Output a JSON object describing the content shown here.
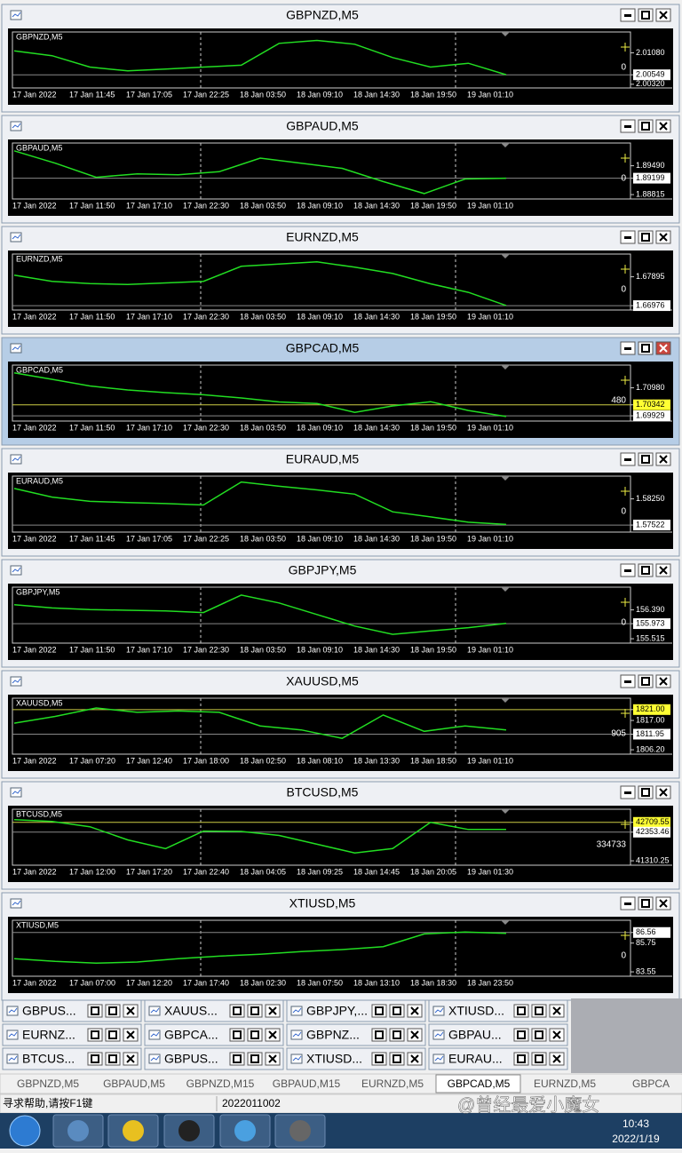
{
  "windows": [
    {
      "title": "GBPNZD,M5",
      "symbol": "GBPNZD,M5",
      "ylim": [
        2.00274,
        2.01541
      ],
      "values": [
        2.01126,
        2.01011,
        2.00735,
        2.00643,
        2.00689,
        2.00735,
        2.00781,
        2.0131,
        2.01379,
        2.01287,
        2.00965,
        2.00735,
        2.00827,
        2.00551
      ],
      "price_labels": [
        {
          "value": 2.0108,
          "label": "2.01080",
          "style": "plain"
        },
        {
          "value": 2.00549,
          "label": "2.00549",
          "style": "box"
        },
        {
          "value": 2.0032,
          "label": "2.00320",
          "style": "plain"
        }
      ],
      "indicator": 0,
      "x_labels": [
        "17 Jan 2022",
        "17 Jan 11:45",
        "17 Jan 17:05",
        "17 Jan 22:25",
        "18 Jan 03:50",
        "18 Jan 09:10",
        "18 Jan 14:30",
        "18 Jan 19:50",
        "19 Jan 01:10"
      ]
    },
    {
      "title": "GBPAUD,M5",
      "symbol": "GBPAUD,M5",
      "ylim": [
        1.88754,
        1.89981
      ],
      "values": [
        1.8984,
        1.8955,
        1.8922,
        1.893,
        1.8928,
        1.8935,
        1.8967,
        1.8955,
        1.8943,
        1.8912,
        1.8884,
        1.8918,
        1.892
      ],
      "price_labels": [
        {
          "value": 1.8949,
          "label": "1.89490",
          "style": "plain"
        },
        {
          "value": 1.89199,
          "label": "1.89199",
          "style": "box"
        },
        {
          "value": 1.88815,
          "label": "1.88815",
          "style": "plain"
        }
      ],
      "indicator": 0,
      "x_labels": [
        "17 Jan 2022",
        "17 Jan 11:50",
        "17 Jan 17:10",
        "17 Jan 22:30",
        "18 Jan 03:50",
        "18 Jan 09:10",
        "18 Jan 14:30",
        "18 Jan 19:50",
        "19 Jan 01:10"
      ]
    },
    {
      "title": "EURNZD,M5",
      "symbol": "EURNZD,M5",
      "ylim": [
        1.66893,
        1.68563
      ],
      "values": [
        1.6795,
        1.6775,
        1.6768,
        1.6765,
        1.677,
        1.6775,
        1.6823,
        1.683,
        1.6837,
        1.682,
        1.68,
        1.6767,
        1.674,
        1.6698
      ],
      "price_labels": [
        {
          "value": 1.67895,
          "label": "1.67895",
          "style": "plain"
        },
        {
          "value": 1.66976,
          "label": "1.66976",
          "style": "box"
        }
      ],
      "indicator": 0,
      "x_labels": [
        "17 Jan 2022",
        "17 Jan 11:50",
        "17 Jan 17:10",
        "17 Jan 22:30",
        "18 Jan 03:50",
        "18 Jan 09:10",
        "18 Jan 14:30",
        "18 Jan 19:50",
        "19 Jan 01:10"
      ]
    },
    {
      "title": "GBPCAD,M5",
      "symbol": "GBPCAD,M5",
      "active": true,
      "ylim": [
        1.69798,
        1.71768
      ],
      "values": [
        1.7154,
        1.713,
        1.7105,
        1.709,
        1.708,
        1.7072,
        1.706,
        1.7045,
        1.7039,
        1.7006,
        1.703,
        1.7046,
        1.7013,
        1.699
      ],
      "price_labels": [
        {
          "value": 1.7098,
          "label": "1.70980",
          "style": "plain"
        },
        {
          "value": 1.70342,
          "label": "1.70342",
          "style": "yellow"
        },
        {
          "value": 1.69929,
          "label": "1.69929",
          "style": "box"
        }
      ],
      "indicator": 480,
      "x_labels": [
        "17 Jan 2022",
        "17 Jan 11:50",
        "17 Jan 17:10",
        "17 Jan 22:30",
        "18 Jan 03:50",
        "18 Jan 09:10",
        "18 Jan 14:30",
        "18 Jan 19:50",
        "19 Jan 01:10"
      ]
    },
    {
      "title": "EURAUD,M5",
      "symbol": "EURAUD,M5",
      "ylim": [
        1.57376,
        1.58833
      ],
      "values": [
        1.5854,
        1.583,
        1.5818,
        1.5815,
        1.5812,
        1.5808,
        1.5872,
        1.586,
        1.585,
        1.5838,
        1.5789,
        1.5775,
        1.576,
        1.5754
      ],
      "price_labels": [
        {
          "value": 1.5825,
          "label": "1.58250",
          "style": "plain"
        },
        {
          "value": 1.57522,
          "label": "1.57522",
          "style": "box"
        }
      ],
      "indicator": 0,
      "x_labels": [
        "17 Jan 2022",
        "17 Jan 11:45",
        "17 Jan 17:05",
        "17 Jan 22:25",
        "18 Jan 03:50",
        "18 Jan 09:10",
        "18 Jan 14:30",
        "18 Jan 19:50",
        "19 Jan 01:10"
      ]
    },
    {
      "title": "GBPJPY,M5",
      "symbol": "GBPJPY,M5",
      "ylim": [
        155.436,
        157.026
      ],
      "values": [
        156.55,
        156.45,
        156.4,
        156.38,
        156.36,
        156.31,
        156.84,
        156.6,
        156.25,
        155.9,
        155.65,
        155.75,
        155.85,
        155.98
      ],
      "price_labels": [
        {
          "value": 156.39,
          "label": "156.390",
          "style": "plain"
        },
        {
          "value": 155.973,
          "label": "155.973",
          "style": "box"
        },
        {
          "value": 155.515,
          "label": "155.515",
          "style": "plain"
        }
      ],
      "indicator": 0,
      "x_labels": [
        "17 Jan 2022",
        "17 Jan 11:50",
        "17 Jan 17:10",
        "17 Jan 22:30",
        "18 Jan 03:50",
        "18 Jan 09:10",
        "18 Jan 14:30",
        "18 Jan 19:50",
        "19 Jan 01:10"
      ]
    },
    {
      "title": "XAUUSD,M5",
      "symbol": "XAUUSD,M5",
      "ylim": [
        1805.24,
        1824.54
      ],
      "values": [
        1816.0,
        1818.5,
        1821.6,
        1820.0,
        1820.5,
        1820.0,
        1815.0,
        1813.5,
        1810.4,
        1819.0,
        1813.0,
        1815.0,
        1813.5
      ],
      "price_labels": [
        {
          "value": 1821,
          "label": "1821.00",
          "style": "yellow"
        },
        {
          "value": 1817,
          "label": "1817.00",
          "style": "plain"
        },
        {
          "value": 1811.95,
          "label": "1811.95",
          "style": "box"
        },
        {
          "value": 1806.2,
          "label": "1806.20",
          "style": "plain"
        }
      ],
      "indicator": 905,
      "x_labels": [
        "17 Jan 2022",
        "17 Jan 07:20",
        "17 Jan 12:40",
        "17 Jan 18:00",
        "18 Jan 02:50",
        "18 Jan 08:10",
        "18 Jan 13:30",
        "18 Jan 18:50",
        "19 Jan 01:10"
      ]
    },
    {
      "title": "BTCUSD,M5",
      "symbol": "BTCUSD,M5",
      "ylim": [
        41215,
        43123
      ],
      "values": [
        42805,
        42741,
        42550,
        42073,
        41755,
        42392,
        42380,
        42233,
        41915,
        41596,
        41755,
        42710,
        42450,
        42450
      ],
      "price_labels": [
        {
          "value": 42709.55,
          "label": "42709.55",
          "style": "yellow"
        },
        {
          "value": 42353.46,
          "label": "42353.46",
          "style": "box"
        },
        {
          "value": 41310.25,
          "label": "41310.25",
          "style": "plain"
        }
      ],
      "indicator": 334733,
      "x_labels": [
        "17 Jan 2022",
        "17 Jan 12:00",
        "17 Jan 17:20",
        "17 Jan 22:40",
        "18 Jan 04:05",
        "18 Jan 09:25",
        "18 Jan 14:45",
        "18 Jan 20:05",
        "19 Jan 01:30"
      ]
    },
    {
      "title": "XTIUSD,M5",
      "symbol": "XTIUSD,M5",
      "ylim": [
        83.35,
        87.36
      ],
      "values": [
        84.55,
        84.35,
        84.22,
        84.3,
        84.55,
        84.75,
        84.9,
        85.1,
        85.25,
        85.48,
        86.45,
        86.6,
        86.5
      ],
      "price_labels": [
        {
          "value": 86.56,
          "label": "86.56",
          "style": "box"
        },
        {
          "value": 85.75,
          "label": "85.75",
          "style": "plain"
        },
        {
          "value": 83.55,
          "label": "83.55",
          "style": "plain"
        }
      ],
      "indicator": 0,
      "x_labels": [
        "17 Jan 2022",
        "17 Jan 07:00",
        "17 Jan 12:20",
        "17 Jan 17:40",
        "18 Jan 02:30",
        "18 Jan 07:50",
        "18 Jan 13:10",
        "18 Jan 18:30",
        "18 Jan 23:50"
      ]
    }
  ],
  "minimized": [
    [
      "GBPUS...",
      "XAUUS...",
      "GBPJPY,...",
      "XTIUSD..."
    ],
    [
      "EURNZ...",
      "GBPCA...",
      "GBPNZ...",
      "GBPAU..."
    ],
    [
      "BTCUS...",
      "GBPUS...",
      "XTIUSD...",
      "EURAU..."
    ]
  ],
  "tabs": [
    "GBPNZD,M5",
    "GBPAUD,M5",
    "GBPNZD,M15",
    "GBPAUD,M15",
    "EURNZD,M5",
    "GBPCAD,M5",
    "EURNZD,M5",
    "GBPCA"
  ],
  "active_tab": 5,
  "status": {
    "help": "寻求帮助,请按F1键",
    "code": "2022011002"
  },
  "watermark": "@曾经最爱小魔女",
  "clock": {
    "time": "10:43",
    "date": "2022/1/19"
  }
}
